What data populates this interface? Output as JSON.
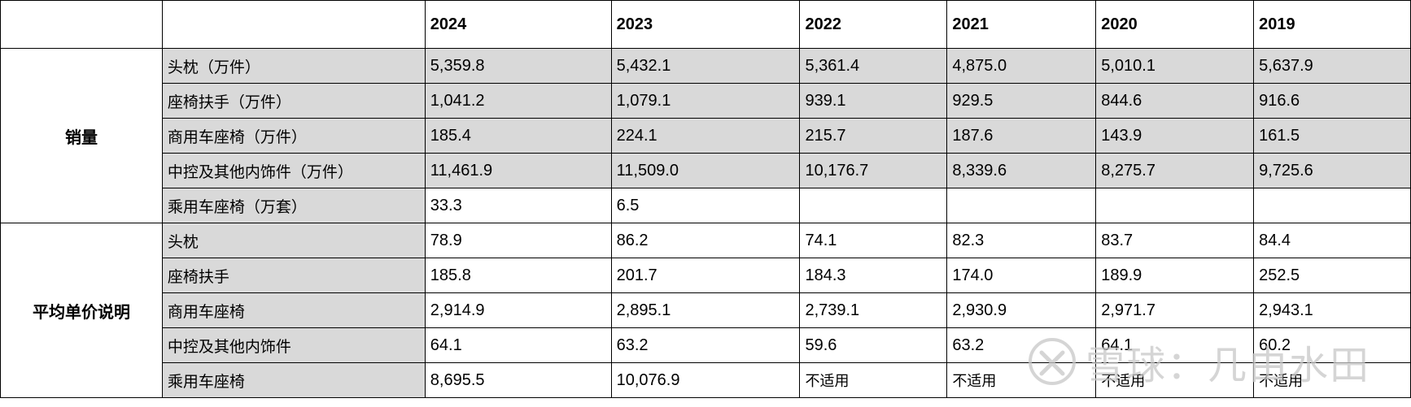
{
  "header": {
    "years": [
      "2024",
      "2023",
      "2022",
      "2021",
      "2020",
      "2019"
    ]
  },
  "sales": {
    "group_label": "销量",
    "rows": [
      {
        "label": "头枕（万件）",
        "values": [
          "5,359.8",
          "5,432.1",
          "5,361.4",
          "4,875.0",
          "5,010.1",
          "5,637.9"
        ]
      },
      {
        "label": "座椅扶手（万件）",
        "values": [
          "1,041.2",
          "1,079.1",
          "939.1",
          "929.5",
          "844.6",
          "916.6"
        ]
      },
      {
        "label": "商用车座椅（万件）",
        "values": [
          "185.4",
          "224.1",
          "215.7",
          "187.6",
          "143.9",
          "161.5"
        ]
      },
      {
        "label": "中控及其他内饰件（万件）",
        "values": [
          "11,461.9",
          "11,509.0",
          "10,176.7",
          "8,339.6",
          "8,275.7",
          "9,725.6"
        ]
      },
      {
        "label": "乘用车座椅（万套）",
        "values": [
          "33.3",
          "6.5",
          "",
          "",
          "",
          ""
        ]
      }
    ]
  },
  "price": {
    "group_label": "平均单价说明",
    "rows": [
      {
        "label": "头枕",
        "values": [
          "78.9",
          "86.2",
          "74.1",
          "82.3",
          "83.7",
          "84.4"
        ]
      },
      {
        "label": "座椅扶手",
        "values": [
          "185.8",
          "201.7",
          "184.3",
          "174.0",
          "189.9",
          "252.5"
        ]
      },
      {
        "label": "商用车座椅",
        "values": [
          "2,914.9",
          "2,895.1",
          "2,739.1",
          "2,930.9",
          "2,971.7",
          "2,943.1"
        ]
      },
      {
        "label": "中控及其他内饰件",
        "values": [
          "64.1",
          "63.2",
          "59.6",
          "63.2",
          "64.1",
          "60.2"
        ]
      },
      {
        "label": "乘用车座椅",
        "values": [
          "8,695.5",
          "10,076.9",
          "不适用",
          "不适用",
          "不适用",
          "不适用"
        ]
      }
    ]
  },
  "watermark": {
    "text": "雪球：几由水田",
    "icon": "xueqiu-logo-icon"
  }
}
